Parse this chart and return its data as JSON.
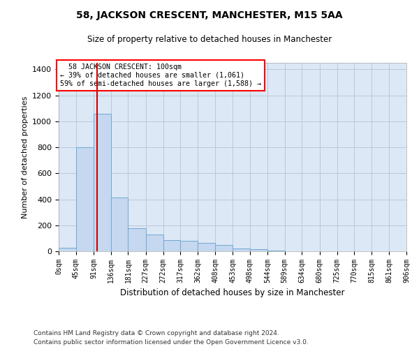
{
  "title": "58, JACKSON CRESCENT, MANCHESTER, M15 5AA",
  "subtitle": "Size of property relative to detached houses in Manchester",
  "xlabel": "Distribution of detached houses by size in Manchester",
  "ylabel": "Number of detached properties",
  "bar_color": "#c5d8ef",
  "bar_edge_color": "#6fa8d4",
  "background_color": "#dce8f5",
  "property_size": 100,
  "property_label": "58 JACKSON CRESCENT: 100sqm",
  "pct_smaller": "39% of detached houses are smaller (1,061)",
  "pct_larger": "59% of semi-detached houses are larger (1,588)",
  "vline_color": "#cc0000",
  "bin_edges": [
    0,
    45,
    91,
    136,
    181,
    227,
    272,
    317,
    362,
    408,
    453,
    498,
    544,
    589,
    634,
    680,
    725,
    770,
    815,
    861,
    906
  ],
  "bar_heights": [
    28,
    800,
    1060,
    415,
    175,
    130,
    88,
    82,
    62,
    48,
    22,
    14,
    5,
    2,
    1,
    0,
    0,
    0,
    0,
    0
  ],
  "ylim": [
    0,
    1450
  ],
  "yticks": [
    0,
    200,
    400,
    600,
    800,
    1000,
    1200,
    1400
  ],
  "grid_color": "#b8c8dc",
  "footnote1": "Contains HM Land Registry data © Crown copyright and database right 2024.",
  "footnote2": "Contains public sector information licensed under the Open Government Licence v3.0."
}
